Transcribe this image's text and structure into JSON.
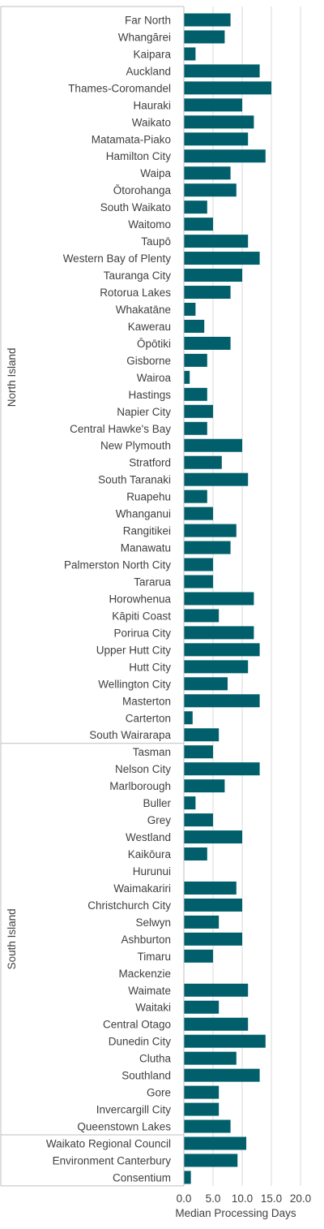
{
  "chart_data": {
    "type": "bar",
    "orientation": "horizontal",
    "xlabel": "Median Processing Days",
    "xlim": [
      0,
      20
    ],
    "xticks": [
      "0.0",
      "5.0",
      "10.0",
      "15.0",
      "20.0"
    ],
    "grid": true,
    "bar_color": "#005f6b",
    "gridline_color": "#d9d9d9",
    "categories": [
      "Far North",
      "Whangārei",
      "Kaipara",
      "Auckland",
      "Thames-Coromandel",
      "Hauraki",
      "Waikato",
      "Matamata-Piako",
      "Hamilton City",
      "Waipa",
      "Ōtorohanga",
      "South Waikato",
      "Waitomo",
      "Taupō",
      "Western Bay of Plenty",
      "Tauranga City",
      "Rotorua Lakes",
      "Whakatāne",
      "Kawerau",
      "Ōpōtiki",
      "Gisborne",
      "Wairoa",
      "Hastings",
      "Napier City",
      "Central Hawke's Bay",
      "New Plymouth",
      "Stratford",
      "South Taranaki",
      "Ruapehu",
      "Whanganui",
      "Rangitikei",
      "Manawatu",
      "Palmerston North City",
      "Tararua",
      "Horowhenua",
      "Kāpiti Coast",
      "Porirua City",
      "Upper Hutt City",
      "Hutt City",
      "Wellington City",
      "Masterton",
      "Carterton",
      "South Wairarapa",
      "Tasman",
      "Nelson City",
      "Marlborough",
      "Buller",
      "Grey",
      "Westland",
      "Kaikōura",
      "Hurunui",
      "Waimakariri",
      "Christchurch City",
      "Selwyn",
      "Ashburton",
      "Timaru",
      "Mackenzie",
      "Waimate",
      "Waitaki",
      "Central Otago",
      "Dunedin City",
      "Clutha",
      "Southland",
      "Gore",
      "Invercargill City",
      "Queenstown Lakes",
      "Waikato Regional Council",
      "Environment Canterbury",
      "Consentium"
    ],
    "values": [
      8,
      7,
      2,
      13,
      15,
      10,
      12,
      11,
      14,
      8,
      9,
      4,
      5,
      11,
      13,
      10,
      8,
      2,
      3.5,
      8,
      4,
      1,
      4,
      5,
      4,
      10,
      6.5,
      11,
      4,
      5,
      9,
      8,
      5,
      5,
      12,
      6,
      12,
      13,
      11,
      7.5,
      13,
      1.5,
      6,
      5,
      13,
      7,
      2,
      5,
      10,
      4,
      0,
      9,
      10,
      6,
      10,
      5,
      0,
      11,
      6,
      11,
      14,
      9,
      13,
      6,
      6,
      8,
      10.7,
      9.2,
      1.2
    ],
    "groups": [
      {
        "label": "North Island",
        "start": 0,
        "end": 42
      },
      {
        "label": "South Island",
        "start": 43,
        "end": 65
      },
      {
        "label": "",
        "start": 66,
        "end": 68
      }
    ]
  }
}
